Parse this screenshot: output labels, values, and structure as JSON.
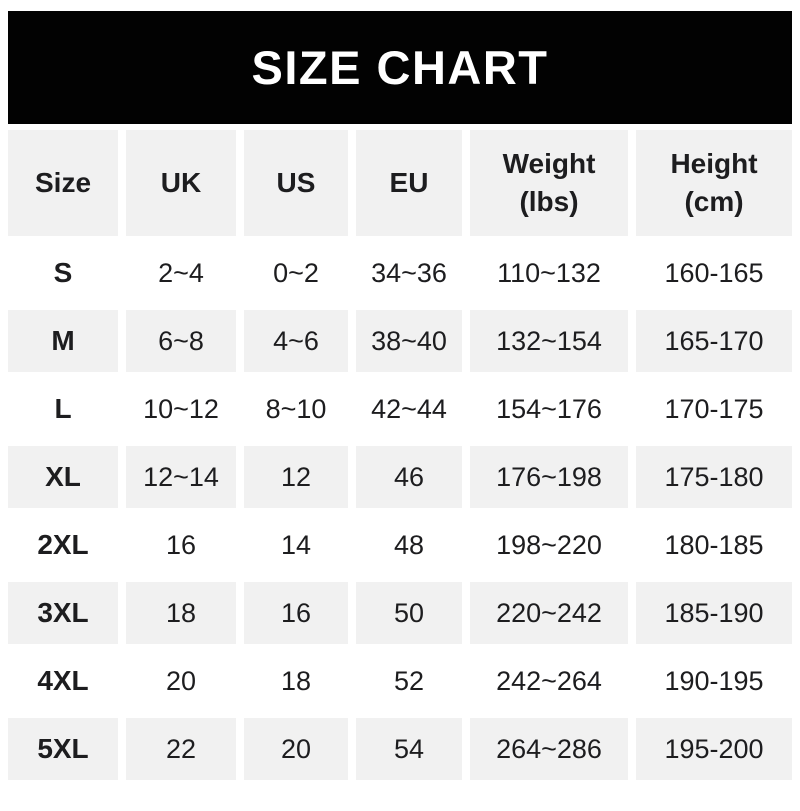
{
  "banner": {
    "title": "SIZE CHART"
  },
  "chart_data": {
    "type": "table",
    "title": "SIZE CHART",
    "columns": [
      {
        "label": "Size",
        "sublabel": ""
      },
      {
        "label": "UK",
        "sublabel": ""
      },
      {
        "label": "US",
        "sublabel": ""
      },
      {
        "label": "EU",
        "sublabel": ""
      },
      {
        "label": "Weight",
        "sublabel": "(lbs)"
      },
      {
        "label": "Height",
        "sublabel": "(cm)"
      }
    ],
    "rows": [
      [
        "S",
        "2~4",
        "0~2",
        "34~36",
        "110~132",
        "160-165"
      ],
      [
        "M",
        "6~8",
        "4~6",
        "38~40",
        "132~154",
        "165-170"
      ],
      [
        "L",
        "10~12",
        "8~10",
        "42~44",
        "154~176",
        "170-175"
      ],
      [
        "XL",
        "12~14",
        "12",
        "46",
        "176~198",
        "175-180"
      ],
      [
        "2XL",
        "16",
        "14",
        "48",
        "198~220",
        "180-185"
      ],
      [
        "3XL",
        "18",
        "16",
        "50",
        "220~242",
        "185-190"
      ],
      [
        "4XL",
        "20",
        "18",
        "52",
        "242~264",
        "190-195"
      ],
      [
        "5XL",
        "22",
        "20",
        "54",
        "264~286",
        "195-200"
      ]
    ],
    "layout": {
      "header_background": "#f1f1f1",
      "alternating_row_background": "#f1f1f1",
      "grid": "white-gutters"
    }
  },
  "colors": {
    "banner_bg": "#000000",
    "banner_text": "#ffffff",
    "cell_alt_bg": "#f1f1f1",
    "cell_bg": "#ffffff",
    "text": "#1d1d1f",
    "page_bg": "#ffffff"
  }
}
